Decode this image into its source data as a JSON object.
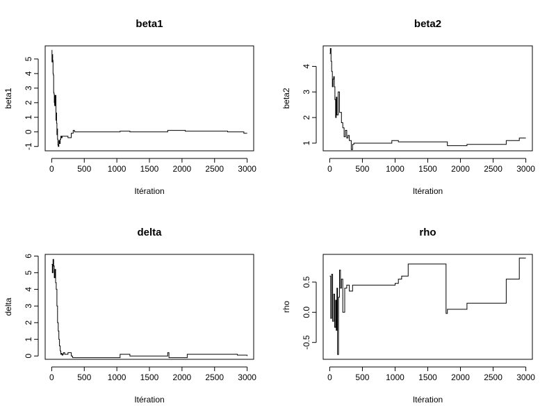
{
  "chart_data": [
    {
      "type": "line",
      "title": "beta1",
      "xlabel": "Itération",
      "ylabel": "beta1",
      "xlim": [
        -100,
        3100
      ],
      "ylim": [
        -1.3,
        5.9
      ],
      "xticks": [
        0,
        500,
        1000,
        1500,
        2000,
        2500,
        3000
      ],
      "yticks": [
        -1,
        0,
        1,
        2,
        3,
        4,
        5
      ],
      "ytick_labels": [
        "-1",
        "0",
        "1",
        "2",
        "3",
        "4",
        "5"
      ],
      "series": [
        {
          "name": "beta1",
          "x": [
            0,
            5,
            10,
            15,
            20,
            25,
            30,
            35,
            40,
            45,
            50,
            55,
            60,
            65,
            70,
            75,
            80,
            85,
            90,
            95,
            100,
            110,
            120,
            130,
            140,
            150,
            160,
            200,
            250,
            300,
            330,
            350,
            1050,
            1200,
            1780,
            2050,
            2700,
            2950,
            3000
          ],
          "y": [
            5.6,
            4.8,
            5.3,
            4.9,
            4.0,
            3.9,
            2.7,
            2.6,
            2.0,
            1.8,
            2.5,
            1.8,
            2.5,
            0.8,
            1.3,
            0.6,
            -0.2,
            0.2,
            -0.5,
            -0.9,
            -1.0,
            -0.6,
            -0.8,
            -0.5,
            -0.3,
            -0.4,
            -0.3,
            -0.3,
            -0.4,
            -0.1,
            0.1,
            0.0,
            0.05,
            0.0,
            0.1,
            0.05,
            0.0,
            -0.1,
            -0.1
          ]
        }
      ]
    },
    {
      "type": "line",
      "title": "beta2",
      "xlabel": "Itération",
      "ylabel": "beta2",
      "xlim": [
        -100,
        3100
      ],
      "ylim": [
        0.7,
        4.8
      ],
      "xticks": [
        0,
        500,
        1000,
        1500,
        2000,
        2500,
        3000
      ],
      "yticks": [
        1,
        2,
        3,
        4
      ],
      "ytick_labels": [
        "1",
        "2",
        "3",
        "4"
      ],
      "series": [
        {
          "name": "beta2",
          "x": [
            0,
            10,
            20,
            30,
            40,
            50,
            60,
            70,
            80,
            90,
            100,
            110,
            130,
            150,
            180,
            200,
            220,
            240,
            260,
            280,
            300,
            330,
            350,
            370,
            950,
            1050,
            1800,
            2100,
            2700,
            2900,
            3000
          ],
          "y": [
            4.5,
            4.7,
            4.2,
            3.8,
            3.2,
            3.5,
            3.6,
            3.2,
            2.7,
            2.0,
            2.8,
            2.1,
            3.0,
            2.2,
            1.8,
            1.6,
            1.25,
            1.5,
            1.2,
            1.3,
            1.1,
            0.75,
            0.95,
            1.0,
            1.1,
            1.05,
            0.9,
            0.95,
            1.1,
            1.2,
            1.2
          ]
        }
      ]
    },
    {
      "type": "line",
      "title": "delta",
      "xlabel": "Itération",
      "ylabel": "delta",
      "xlim": [
        -100,
        3100
      ],
      "ylim": [
        -0.2,
        6.1
      ],
      "xticks": [
        0,
        500,
        1000,
        1500,
        2000,
        2500,
        3000
      ],
      "yticks": [
        0,
        1,
        2,
        3,
        4,
        5,
        6
      ],
      "ytick_labels": [
        "0",
        "1",
        "2",
        "3",
        "4",
        "5",
        "6"
      ],
      "series": [
        {
          "name": "delta",
          "x": [
            0,
            10,
            20,
            30,
            40,
            50,
            60,
            70,
            80,
            90,
            100,
            110,
            120,
            130,
            140,
            150,
            160,
            170,
            180,
            200,
            250,
            300,
            320,
            950,
            1050,
            1200,
            1780,
            1800,
            2080,
            2700,
            2850,
            3000
          ],
          "y": [
            5.5,
            5.0,
            5.8,
            5.4,
            4.7,
            5.2,
            4.4,
            4.0,
            3.0,
            2.0,
            1.5,
            1.0,
            0.6,
            0.3,
            0.1,
            0.15,
            0.05,
            0.1,
            0.2,
            0.1,
            0.2,
            0.0,
            -0.1,
            -0.1,
            0.1,
            0.0,
            0.2,
            -0.1,
            0.1,
            0.1,
            0.05,
            0.0
          ]
        }
      ]
    },
    {
      "type": "line",
      "title": "rho",
      "xlabel": "Itération",
      "ylabel": "rho",
      "xlim": [
        -100,
        3100
      ],
      "ylim": [
        -0.78,
        0.96
      ],
      "xticks": [
        0,
        500,
        1000,
        1500,
        2000,
        2500,
        3000
      ],
      "yticks": [
        -0.5,
        0,
        0.5
      ],
      "ytick_labels": [
        "-0.5",
        "0.0",
        "0.5"
      ],
      "series": [
        {
          "name": "rho",
          "x": [
            0,
            15,
            30,
            45,
            60,
            75,
            90,
            100,
            110,
            120,
            135,
            150,
            165,
            180,
            200,
            230,
            260,
            300,
            350,
            1000,
            1050,
            1100,
            1200,
            1780,
            1800,
            2100,
            2700,
            2900,
            3000
          ],
          "y": [
            0.6,
            -0.1,
            0.63,
            -0.15,
            0.3,
            -0.25,
            0.2,
            -0.3,
            0.4,
            -0.7,
            0.25,
            0.7,
            0.4,
            0.55,
            0.0,
            0.4,
            0.45,
            0.35,
            0.45,
            0.48,
            0.55,
            0.6,
            0.8,
            -0.02,
            0.05,
            0.15,
            0.55,
            0.9,
            0.9
          ]
        }
      ]
    }
  ]
}
